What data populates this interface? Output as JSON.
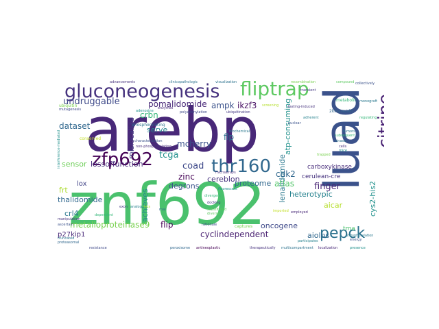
{
  "words": [
    {
      "text": "arebp",
      "color": "#482878"
    },
    {
      "text": "znf692",
      "color": "#4ac16d"
    },
    {
      "text": "luad",
      "color": "#3b528b"
    },
    {
      "text": "gluconeogenesis",
      "color": "#46327e"
    },
    {
      "text": "fliptrap",
      "color": "#5ec962"
    },
    {
      "text": "citrine",
      "color": "#482173"
    },
    {
      "text": "thr160",
      "color": "#31688e"
    },
    {
      "text": "zfp692",
      "color": "#440154"
    },
    {
      "text": "pepck",
      "color": "#2c728e"
    },
    {
      "text": "undruggable",
      "color": "#3e4989"
    },
    {
      "text": "pomalidomide",
      "color": "#482878"
    },
    {
      "text": "ampk",
      "color": "#3b528b"
    },
    {
      "text": "ikzf3",
      "color": "#471063"
    },
    {
      "text": "tcga",
      "color": "#21918c"
    },
    {
      "text": "crbn",
      "color": "#35b779"
    },
    {
      "text": "mislocalize",
      "color": "#443983"
    },
    {
      "text": "dataset",
      "color": "#31688e"
    },
    {
      "text": "serve",
      "color": "#26828e"
    },
    {
      "text": "mcherry",
      "color": "#3b528b"
    },
    {
      "text": "flp",
      "color": "#2c728e"
    },
    {
      "text": "atp-consuming",
      "color": "#21918c"
    },
    {
      "text": "sensor",
      "color": "#6ece58"
    },
    {
      "text": "lossoffunction",
      "color": "#472d7b"
    },
    {
      "text": "coad",
      "color": "#3e4989"
    },
    {
      "text": "lenalidomide",
      "color": "#2a788e"
    },
    {
      "text": "cdk2",
      "color": "#31688e"
    },
    {
      "text": "zinc",
      "color": "#440154"
    },
    {
      "text": "degrons",
      "color": "#3b528b"
    },
    {
      "text": "cereblon",
      "color": "#46327e"
    },
    {
      "text": "proteome",
      "color": "#31688e"
    },
    {
      "text": "atlas",
      "color": "#52c569"
    },
    {
      "text": "finger",
      "color": "#482475"
    },
    {
      "text": "carboxykinase",
      "color": "#472c7a"
    },
    {
      "text": "cerulean-cre",
      "color": "#46327e"
    },
    {
      "text": "heterotypic",
      "color": "#26828e"
    },
    {
      "text": "cys2-his2",
      "color": "#21918c"
    },
    {
      "text": "frt",
      "color": "#addc30"
    },
    {
      "text": "lox",
      "color": "#414487"
    },
    {
      "text": "thalidomide",
      "color": "#31688e"
    },
    {
      "text": "aicar",
      "color": "#b5de2b"
    },
    {
      "text": "crl4",
      "color": "#2a788e"
    },
    {
      "text": "achieves",
      "color": "#238a8d"
    },
    {
      "text": "flip",
      "color": "#440154"
    },
    {
      "text": "oncogene",
      "color": "#3e4989"
    },
    {
      "text": "metalloproteinase9",
      "color": "#7ad151"
    },
    {
      "text": "cyclindependent",
      "color": "#481f70"
    },
    {
      "text": "aiolos",
      "color": "#31688e"
    },
    {
      "text": "tma",
      "color": "#4ac16d"
    },
    {
      "text": "p27kip1",
      "color": "#482878"
    },
    {
      "text": "2kinase/akt",
      "color": "#31688e"
    },
    {
      "text": "phosphorylating",
      "color": "#2c728e"
    },
    {
      "text": "ubiquitin",
      "color": "#7ad151"
    },
    {
      "text": "metabolic",
      "color": "#35b779"
    },
    {
      "text": "conserved",
      "color": "#c2df23"
    },
    {
      "text": "mutagenesis",
      "color": "#3e4989"
    },
    {
      "text": "adenosine",
      "color": "#21918c"
    },
    {
      "text": "clinicopathologic",
      "color": "#2c728e"
    },
    {
      "text": "advancements",
      "color": "#46327e"
    },
    {
      "text": "collectively",
      "color": "#3b528b"
    },
    {
      "text": "compound",
      "color": "#5ec962"
    },
    {
      "text": "transient",
      "color": "#443983"
    },
    {
      "text": "monograft",
      "color": "#2a788e"
    },
    {
      "text": "regulating",
      "color": "#35b779"
    },
    {
      "text": "enzymes",
      "color": "#482878"
    },
    {
      "text": "polyadenylation",
      "color": "#3e4989"
    },
    {
      "text": "visualization",
      "color": "#2c728e"
    },
    {
      "text": "recombination",
      "color": "#7ad151"
    },
    {
      "text": "fasting-induced",
      "color": "#46327e"
    },
    {
      "text": "adherent",
      "color": "#26828e"
    },
    {
      "text": "non-phosphorylating",
      "color": "#472d7b"
    },
    {
      "text": "characterization",
      "color": "#3b528b"
    },
    {
      "text": "interference-mediated",
      "color": "#21918c"
    },
    {
      "text": "biochemical",
      "color": "#2a788e"
    },
    {
      "text": "subsequent",
      "color": "#35b779"
    },
    {
      "text": "ubiquitination",
      "color": "#443983"
    },
    {
      "text": "screening",
      "color": "#b5de2b"
    },
    {
      "text": "peroxisome",
      "color": "#31688e"
    },
    {
      "text": "antineoplastic",
      "color": "#440154"
    },
    {
      "text": "resistance",
      "color": "#3e4989"
    },
    {
      "text": "therapeutically",
      "color": "#46327e"
    },
    {
      "text": "multicompartment",
      "color": "#2c728e"
    },
    {
      "text": "localization",
      "color": "#482878"
    },
    {
      "text": "presence",
      "color": "#21918c"
    },
    {
      "text": "energy",
      "color": "#3b528b"
    },
    {
      "text": "phosphorylation",
      "color": "#2a788e"
    },
    {
      "text": "substituted",
      "color": "#5ec962"
    },
    {
      "text": "captures",
      "color": "#7ad151"
    },
    {
      "text": "docking",
      "color": "#443983"
    },
    {
      "text": "divergent",
      "color": "#35b779"
    },
    {
      "text": "participates",
      "color": "#26828e"
    },
    {
      "text": "imported",
      "color": "#c2df23"
    },
    {
      "text": "manipulation",
      "color": "#46327e"
    },
    {
      "text": "ascertain",
      "color": "#3b528b"
    },
    {
      "text": "proteasomal",
      "color": "#31688e"
    },
    {
      "text": "truncated",
      "color": "#2c728e"
    },
    {
      "text": "microarrays",
      "color": "#472d7b"
    },
    {
      "text": "fluorescent",
      "color": "#21918c"
    },
    {
      "text": "rationale",
      "color": "#3e4989"
    },
    {
      "text": "dependent",
      "color": "#35b779"
    },
    {
      "text": "employed",
      "color": "#482878"
    },
    {
      "text": "diverse",
      "color": "#5ec962"
    },
    {
      "text": "tumors",
      "color": "#2a788e"
    },
    {
      "text": "nuclear",
      "color": "#3b528b"
    },
    {
      "text": "trapped",
      "color": "#7ad151"
    },
    {
      "text": "analog",
      "color": "#26828e"
    },
    {
      "text": "exon",
      "color": "#443983"
    },
    {
      "text": "rnai",
      "color": "#31688e"
    },
    {
      "text": "hits",
      "color": "#b5de2b"
    },
    {
      "text": "cells",
      "color": "#46327e"
    },
    {
      "text": "mice",
      "color": "#21918c"
    },
    {
      "text": "kinase",
      "color": "#2c728e"
    }
  ]
}
